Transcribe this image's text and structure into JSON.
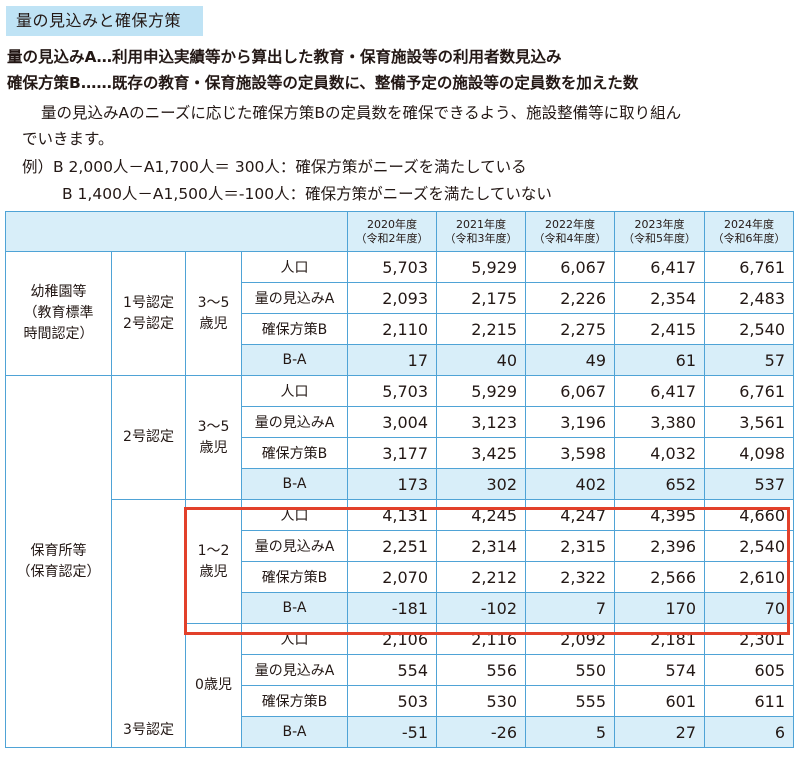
{
  "title": "量の見込みと確保方策",
  "definitions": {
    "a": "量の見込みA…利用申込実績等から算出した教育・保育施設等の利用者数見込み",
    "b": "確保方策B……既存の教育・保育施設等の定員数に、整備予定の施設等の定員数を加えた数"
  },
  "paragraph": {
    "line1": "量の見込みAのニーズに応じた確保方策Bの定員数を確保できるよう、施設整備等に取り組ん",
    "line2": "でいきます。",
    "example1": "例）B  2,000人－A1,700人＝ 300人：確保方策がニーズを満たしている",
    "example2": "B  1,400人－A1,500人＝-100人：確保方策がニーズを満たしていない"
  },
  "table": {
    "years": [
      {
        "year": "2020年度",
        "era": "（令和2年度）"
      },
      {
        "year": "2021年度",
        "era": "（令和3年度）"
      },
      {
        "year": "2022年度",
        "era": "（令和4年度）"
      },
      {
        "year": "2023年度",
        "era": "（令和5年度）"
      },
      {
        "year": "2024年度",
        "era": "（令和6年度）"
      }
    ],
    "row_labels": {
      "pop": "人口",
      "a": "量の見込みA",
      "b": "確保方策B",
      "ba": "B-A"
    },
    "kindergarten": {
      "facility": [
        "幼稚園等",
        "（教育標準",
        "時間認定）"
      ],
      "certification": [
        "1号認定",
        "2号認定"
      ],
      "age": [
        "3～5",
        "歳児"
      ],
      "pop": [
        "5,703",
        "5,929",
        "6,067",
        "6,417",
        "6,761"
      ],
      "a": [
        "2,093",
        "2,175",
        "2,226",
        "2,354",
        "2,483"
      ],
      "b": [
        "2,110",
        "2,215",
        "2,275",
        "2,415",
        "2,540"
      ],
      "ba": [
        "17",
        "40",
        "49",
        "61",
        "57"
      ]
    },
    "nursery": {
      "facility": [
        "保育所等",
        "（保育認定）"
      ],
      "cert2": "2号認定",
      "cert3": "3号認定",
      "age35": {
        "age": [
          "3～5",
          "歳児"
        ],
        "pop": [
          "5,703",
          "5,929",
          "6,067",
          "6,417",
          "6,761"
        ],
        "a": [
          "3,004",
          "3,123",
          "3,196",
          "3,380",
          "3,561"
        ],
        "b": [
          "3,177",
          "3,425",
          "3,598",
          "4,032",
          "4,098"
        ],
        "ba": [
          "173",
          "302",
          "402",
          "652",
          "537"
        ]
      },
      "age12": {
        "age": [
          "1～2",
          "歳児"
        ],
        "pop": [
          "4,131",
          "4,245",
          "4,247",
          "4,395",
          "4,660"
        ],
        "a": [
          "2,251",
          "2,314",
          "2,315",
          "2,396",
          "2,540"
        ],
        "b": [
          "2,070",
          "2,212",
          "2,322",
          "2,566",
          "2,610"
        ],
        "ba": [
          "-181",
          "-102",
          "7",
          "170",
          "70"
        ]
      },
      "age0": {
        "age": [
          "0歳児"
        ],
        "pop": [
          "2,106",
          "2,116",
          "2,092",
          "2,181",
          "2,301"
        ],
        "a": [
          "554",
          "556",
          "550",
          "574",
          "605"
        ],
        "b": [
          "503",
          "530",
          "555",
          "601",
          "611"
        ],
        "ba": [
          "-51",
          "-26",
          "5",
          "27",
          "6"
        ]
      }
    }
  },
  "colors": {
    "header_fill": "#d8eef9",
    "border": "#4fa3d6",
    "title_fill": "#bfe3f5",
    "highlight": "#e2402a"
  }
}
